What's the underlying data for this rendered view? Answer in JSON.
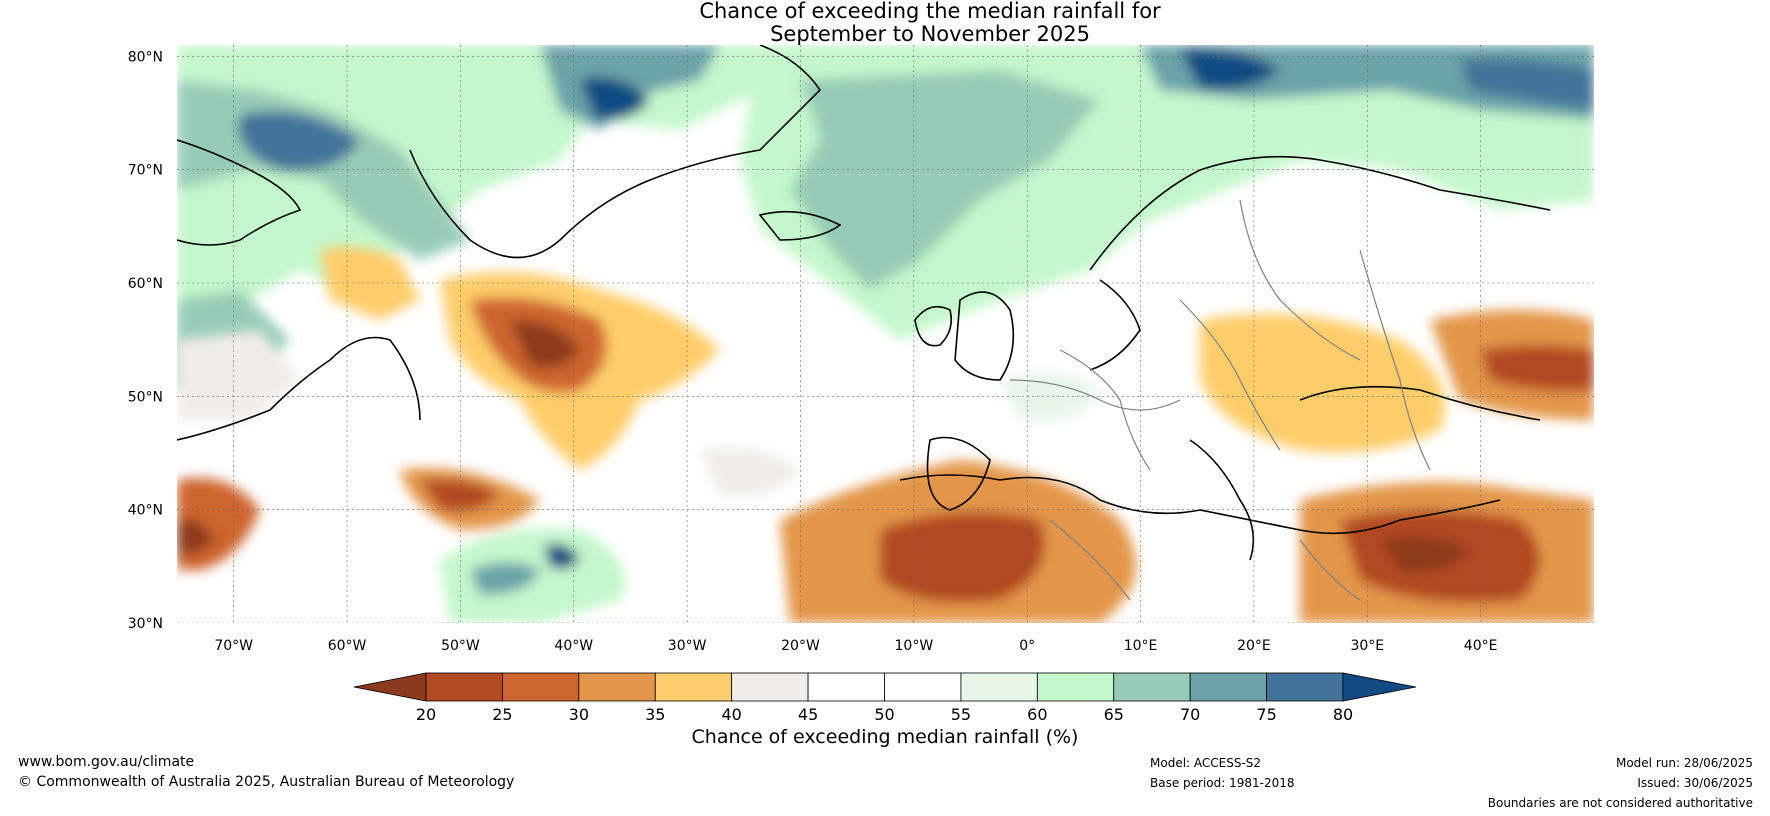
{
  "title": {
    "line1": "Chance of exceeding the median rainfall for",
    "line2": "September to November 2025"
  },
  "map": {
    "lat_ticks": [
      "80°N",
      "70°N",
      "60°N",
      "50°N",
      "40°N",
      "30°N"
    ],
    "lon_ticks": [
      "70°W",
      "60°W",
      "50°W",
      "40°W",
      "30°W",
      "20°W",
      "10°W",
      "0°",
      "10°E",
      "20°E",
      "30°E",
      "40°E"
    ],
    "lon_range": [
      -75,
      50
    ],
    "lat_range": [
      30,
      81
    ],
    "coastline_color": "#000000",
    "border_color": "#808080"
  },
  "colorbar": {
    "title": "Chance of exceeding median rainfall (%)",
    "ticks": [
      "20",
      "25",
      "30",
      "35",
      "40",
      "45",
      "50",
      "55",
      "60",
      "65",
      "70",
      "75",
      "80"
    ],
    "colors": [
      "#8c3a1e",
      "#b24a24",
      "#cd652e",
      "#e3964a",
      "#fecd6b",
      "#f1ece7",
      "#ffffff",
      "#ffffff",
      "#e8f6ea",
      "#c4f7cc",
      "#96ccb6",
      "#6ba3a8",
      "#42739a",
      "#114b82"
    ]
  },
  "footer": {
    "website": "www.bom.gov.au/climate",
    "copyright": "© Commonwealth of Australia 2025, Australian Bureau of Meteorology",
    "model": "Model: ACCESS-S2",
    "base_period": "Base period: 1981-2018",
    "model_run": "Model run: 28/06/2025",
    "issued": "Issued: 30/06/2025",
    "boundaries": "Boundaries are not considered authoritative"
  }
}
